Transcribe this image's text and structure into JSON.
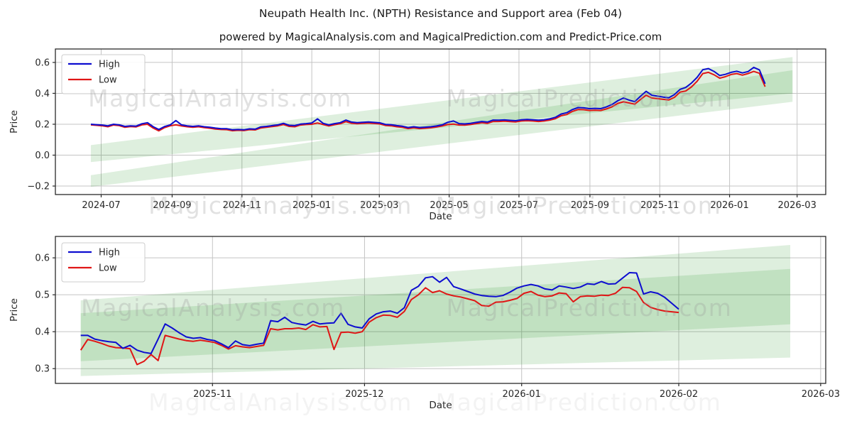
{
  "figure": {
    "title": "Neupath Health Inc. (NPTH) Resistance and Support area (Feb 04)",
    "subtitle": "powered by MagicalAnalysis.com and MagicalPrediction.com and Predict-Price.com"
  },
  "watermarks": {
    "left_text": "MagicalAnalysis.com",
    "right_text": "MagicalPrediction.com",
    "color": "#9c9c9c"
  },
  "colors": {
    "high": "#0d0dd0",
    "low": "#e01616",
    "band": "#008000",
    "grid": "#c4c4c4",
    "spine": "#2a2a2a",
    "text": "#262626",
    "legend_border": "#cccccc"
  },
  "chart_data": [
    {
      "name": "full-history",
      "type": "line",
      "xlabel": "Date",
      "ylabel": "Price",
      "x_range": [
        "2024-05-22",
        "2026-03-26"
      ],
      "y_range": [
        -0.255,
        0.687
      ],
      "x_ticks": [
        {
          "date": "2024-07-01",
          "label": "2024-07"
        },
        {
          "date": "2024-09-01",
          "label": "2024-09"
        },
        {
          "date": "2024-11-01",
          "label": "2024-11"
        },
        {
          "date": "2025-01-01",
          "label": "2025-01"
        },
        {
          "date": "2025-03-01",
          "label": "2025-03"
        },
        {
          "date": "2025-05-01",
          "label": "2025-05"
        },
        {
          "date": "2025-07-01",
          "label": "2025-07"
        },
        {
          "date": "2025-09-01",
          "label": "2025-09"
        },
        {
          "date": "2025-11-01",
          "label": "2025-11"
        },
        {
          "date": "2026-01-01",
          "label": "2026-01"
        },
        {
          "date": "2026-03-01",
          "label": "2026-03"
        }
      ],
      "y_ticks": [
        {
          "value": -0.2,
          "label": "−0.2"
        },
        {
          "value": 0.0,
          "label": "0.0"
        },
        {
          "value": 0.2,
          "label": "0.2"
        },
        {
          "value": 0.4,
          "label": "0.4"
        },
        {
          "value": 0.6,
          "label": "0.6"
        }
      ],
      "legend": [
        {
          "label": "High",
          "color": "#0d0dd0"
        },
        {
          "label": "Low",
          "color": "#e01616"
        }
      ],
      "bands": [
        {
          "name": "resistance-area",
          "x": [
            "2024-06-22",
            "2026-02-25"
          ],
          "top": [
            0.065,
            0.635
          ],
          "bottom": [
            -0.045,
            0.4
          ]
        },
        {
          "name": "support-area",
          "x": [
            "2024-06-22",
            "2026-02-25"
          ],
          "top": [
            -0.13,
            0.55
          ],
          "bottom": [
            -0.205,
            0.345
          ]
        }
      ],
      "series": {
        "start": "2024-06-22",
        "end": "2026-02-01",
        "high": [
          0.2,
          0.197,
          0.195,
          0.19,
          0.2,
          0.196,
          0.186,
          0.19,
          0.188,
          0.203,
          0.21,
          0.184,
          0.166,
          0.185,
          0.196,
          0.224,
          0.196,
          0.19,
          0.186,
          0.19,
          0.184,
          0.18,
          0.175,
          0.171,
          0.171,
          0.164,
          0.166,
          0.164,
          0.17,
          0.168,
          0.183,
          0.186,
          0.191,
          0.196,
          0.206,
          0.193,
          0.191,
          0.201,
          0.204,
          0.208,
          0.235,
          0.206,
          0.196,
          0.204,
          0.21,
          0.227,
          0.214,
          0.21,
          0.213,
          0.215,
          0.212,
          0.209,
          0.199,
          0.197,
          0.191,
          0.187,
          0.179,
          0.184,
          0.179,
          0.181,
          0.184,
          0.189,
          0.196,
          0.213,
          0.221,
          0.204,
          0.202,
          0.206,
          0.212,
          0.218,
          0.214,
          0.227,
          0.226,
          0.228,
          0.225,
          0.223,
          0.229,
          0.231,
          0.229,
          0.226,
          0.229,
          0.235,
          0.245,
          0.266,
          0.275,
          0.295,
          0.308,
          0.306,
          0.301,
          0.303,
          0.301,
          0.312,
          0.328,
          0.352,
          0.37,
          0.356,
          0.346,
          0.381,
          0.413,
          0.388,
          0.382,
          0.376,
          0.371,
          0.392,
          0.426,
          0.438,
          0.466,
          0.503,
          0.553,
          0.56,
          0.542,
          0.515,
          0.523,
          0.536,
          0.543,
          0.532,
          0.541,
          0.568,
          0.552,
          0.462
        ],
        "low": [
          0.196,
          0.193,
          0.19,
          0.184,
          0.195,
          0.191,
          0.18,
          0.185,
          0.183,
          0.196,
          0.2,
          0.175,
          0.157,
          0.178,
          0.19,
          0.196,
          0.189,
          0.184,
          0.18,
          0.184,
          0.178,
          0.174,
          0.169,
          0.166,
          0.165,
          0.158,
          0.161,
          0.159,
          0.165,
          0.163,
          0.176,
          0.18,
          0.185,
          0.19,
          0.198,
          0.186,
          0.184,
          0.195,
          0.198,
          0.2,
          0.208,
          0.198,
          0.189,
          0.197,
          0.203,
          0.217,
          0.207,
          0.203,
          0.206,
          0.208,
          0.205,
          0.202,
          0.192,
          0.19,
          0.184,
          0.18,
          0.172,
          0.177,
          0.172,
          0.174,
          0.177,
          0.182,
          0.189,
          0.198,
          0.201,
          0.195,
          0.194,
          0.198,
          0.204,
          0.21,
          0.206,
          0.218,
          0.218,
          0.22,
          0.217,
          0.215,
          0.221,
          0.223,
          0.221,
          0.218,
          0.221,
          0.227,
          0.236,
          0.255,
          0.263,
          0.283,
          0.295,
          0.294,
          0.289,
          0.291,
          0.289,
          0.299,
          0.313,
          0.335,
          0.345,
          0.338,
          0.33,
          0.36,
          0.388,
          0.37,
          0.366,
          0.361,
          0.357,
          0.374,
          0.408,
          0.415,
          0.441,
          0.478,
          0.528,
          0.536,
          0.52,
          0.498,
          0.508,
          0.522,
          0.528,
          0.518,
          0.528,
          0.542,
          0.53,
          0.443
        ]
      }
    },
    {
      "name": "recent-zoom",
      "type": "line",
      "xlabel": "Date",
      "ylabel": "Price",
      "x_range": [
        "2025-10-01",
        "2026-03-02"
      ],
      "y_range": [
        0.26,
        0.658
      ],
      "x_ticks": [
        {
          "date": "2025-11-01",
          "label": "2025-11"
        },
        {
          "date": "2025-12-01",
          "label": "2025-12"
        },
        {
          "date": "2026-01-01",
          "label": "2026-01"
        },
        {
          "date": "2026-02-01",
          "label": "2026-02"
        },
        {
          "date": "2026-03-01",
          "label": "2026-03"
        }
      ],
      "y_ticks": [
        {
          "value": 0.3,
          "label": "0.3"
        },
        {
          "value": 0.4,
          "label": "0.4"
        },
        {
          "value": 0.5,
          "label": "0.5"
        },
        {
          "value": 0.6,
          "label": "0.6"
        }
      ],
      "legend": [
        {
          "label": "High",
          "color": "#0d0dd0"
        },
        {
          "label": "Low",
          "color": "#e01616"
        }
      ],
      "bands": [
        {
          "name": "resistance-area",
          "x": [
            "2025-10-06",
            "2026-02-23"
          ],
          "top": [
            0.485,
            0.635
          ],
          "bottom": [
            0.32,
            0.42
          ]
        },
        {
          "name": "support-area",
          "x": [
            "2025-10-06",
            "2026-02-23"
          ],
          "top": [
            0.45,
            0.57
          ],
          "bottom": [
            0.28,
            0.33
          ]
        }
      ],
      "series": {
        "start": "2025-10-06",
        "end": "2026-02-01",
        "high": [
          0.39,
          0.39,
          0.38,
          0.376,
          0.373,
          0.371,
          0.355,
          0.363,
          0.35,
          0.344,
          0.341,
          0.38,
          0.421,
          0.41,
          0.397,
          0.386,
          0.382,
          0.384,
          0.379,
          0.376,
          0.367,
          0.357,
          0.375,
          0.365,
          0.362,
          0.366,
          0.369,
          0.43,
          0.427,
          0.439,
          0.425,
          0.421,
          0.418,
          0.428,
          0.421,
          0.423,
          0.424,
          0.45,
          0.42,
          0.413,
          0.41,
          0.435,
          0.448,
          0.454,
          0.456,
          0.45,
          0.465,
          0.512,
          0.523,
          0.546,
          0.549,
          0.534,
          0.547,
          0.522,
          0.516,
          0.509,
          0.502,
          0.498,
          0.496,
          0.495,
          0.498,
          0.507,
          0.518,
          0.524,
          0.528,
          0.524,
          0.516,
          0.513,
          0.524,
          0.521,
          0.517,
          0.521,
          0.53,
          0.528,
          0.536,
          0.529,
          0.53,
          0.545,
          0.56,
          0.559,
          0.502,
          0.508,
          0.504,
          0.493,
          0.477,
          0.461
        ],
        "low": [
          0.35,
          0.379,
          0.374,
          0.368,
          0.361,
          0.357,
          0.356,
          0.354,
          0.311,
          0.32,
          0.338,
          0.322,
          0.39,
          0.385,
          0.38,
          0.376,
          0.374,
          0.377,
          0.374,
          0.371,
          0.363,
          0.353,
          0.362,
          0.359,
          0.357,
          0.36,
          0.363,
          0.408,
          0.405,
          0.408,
          0.408,
          0.41,
          0.406,
          0.419,
          0.413,
          0.414,
          0.352,
          0.398,
          0.399,
          0.396,
          0.4,
          0.426,
          0.438,
          0.445,
          0.444,
          0.439,
          0.455,
          0.487,
          0.5,
          0.519,
          0.506,
          0.511,
          0.502,
          0.497,
          0.494,
          0.489,
          0.484,
          0.471,
          0.469,
          0.48,
          0.481,
          0.485,
          0.49,
          0.504,
          0.509,
          0.499,
          0.495,
          0.497,
          0.505,
          0.503,
          0.481,
          0.495,
          0.497,
          0.496,
          0.499,
          0.498,
          0.504,
          0.52,
          0.519,
          0.509,
          0.479,
          0.466,
          0.46,
          0.456,
          0.454,
          0.452
        ]
      }
    }
  ]
}
